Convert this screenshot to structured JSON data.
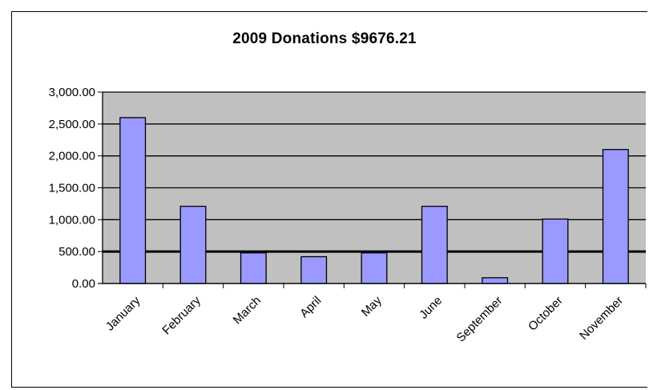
{
  "chart_data": {
    "type": "bar",
    "title": "2009 Donations  $9676.21",
    "categories": [
      "January",
      "February",
      "March",
      "April",
      "May",
      "June",
      "September",
      "October",
      "November"
    ],
    "values": [
      2600,
      1210,
      480,
      420,
      480,
      1210,
      90,
      1010,
      2100
    ],
    "yticks": [
      "0.00",
      "500.00",
      "1,000.00",
      "1,500.00",
      "2,000.00",
      "2,500.00",
      "3,000.00"
    ],
    "ylim": [
      0,
      3000
    ],
    "grid": true,
    "legend": "none",
    "colors": {
      "bar": "#9999FF",
      "plot_bg": "#C0C0C0"
    }
  }
}
